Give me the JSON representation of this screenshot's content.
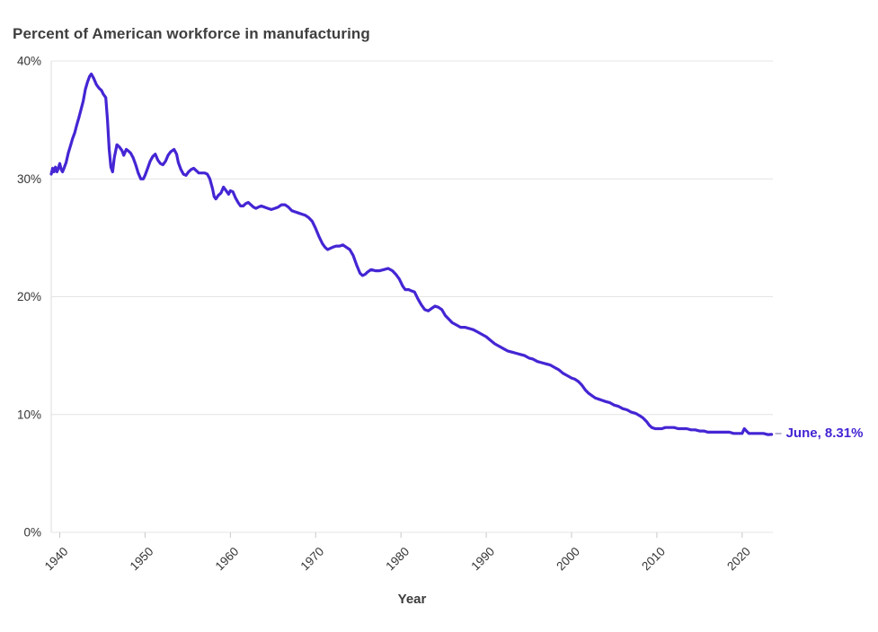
{
  "header": {
    "title": "Percent of American workforce in manufacturing"
  },
  "chart_data": {
    "type": "line",
    "title": "Percent of American workforce in manufacturing",
    "xlabel": "Year",
    "ylabel": "",
    "xlim": [
      1939.0,
      2023.6
    ],
    "ylim": [
      0,
      40
    ],
    "grid": "horizontal",
    "legend": "none",
    "x_ticks": [
      1940,
      1950,
      1960,
      1970,
      1980,
      1990,
      2000,
      2010,
      2020
    ],
    "y_ticks": [
      {
        "value": 0,
        "label": "0%"
      },
      {
        "value": 10,
        "label": "10%"
      },
      {
        "value": 20,
        "label": "20%"
      },
      {
        "value": 30,
        "label": "30%"
      },
      {
        "value": 40,
        "label": "40%"
      }
    ],
    "annotation": {
      "label": "June, 8.31%",
      "year": 2023.45,
      "value": 8.31
    },
    "series": [
      {
        "name": "Percent of American workforce in manufacturing",
        "color": "#4525d4",
        "points": [
          [
            1939.0,
            30.4
          ],
          [
            1939.17,
            30.9
          ],
          [
            1939.33,
            30.6
          ],
          [
            1939.5,
            31.0
          ],
          [
            1939.67,
            30.6
          ],
          [
            1939.83,
            30.9
          ],
          [
            1940.0,
            31.3
          ],
          [
            1940.17,
            30.8
          ],
          [
            1940.33,
            30.6
          ],
          [
            1940.5,
            30.9
          ],
          [
            1940.75,
            31.4
          ],
          [
            1941.0,
            32.2
          ],
          [
            1941.25,
            32.8
          ],
          [
            1941.5,
            33.4
          ],
          [
            1941.75,
            33.9
          ],
          [
            1942.0,
            34.6
          ],
          [
            1942.25,
            35.2
          ],
          [
            1942.5,
            35.9
          ],
          [
            1942.75,
            36.6
          ],
          [
            1943.0,
            37.6
          ],
          [
            1943.25,
            38.2
          ],
          [
            1943.5,
            38.7
          ],
          [
            1943.7,
            38.9
          ],
          [
            1944.0,
            38.5
          ],
          [
            1944.3,
            38.0
          ],
          [
            1944.6,
            37.7
          ],
          [
            1944.9,
            37.5
          ],
          [
            1945.1,
            37.2
          ],
          [
            1945.4,
            36.9
          ],
          [
            1945.6,
            35.0
          ],
          [
            1945.8,
            32.5
          ],
          [
            1946.0,
            31.0
          ],
          [
            1946.2,
            30.6
          ],
          [
            1946.4,
            31.8
          ],
          [
            1946.7,
            32.9
          ],
          [
            1947.0,
            32.7
          ],
          [
            1947.3,
            32.4
          ],
          [
            1947.5,
            32.0
          ],
          [
            1947.8,
            32.5
          ],
          [
            1948.0,
            32.4
          ],
          [
            1948.3,
            32.2
          ],
          [
            1948.6,
            31.8
          ],
          [
            1948.9,
            31.2
          ],
          [
            1949.2,
            30.5
          ],
          [
            1949.5,
            30.0
          ],
          [
            1949.8,
            30.0
          ],
          [
            1950.0,
            30.3
          ],
          [
            1950.3,
            30.9
          ],
          [
            1950.6,
            31.5
          ],
          [
            1950.9,
            31.9
          ],
          [
            1951.2,
            32.1
          ],
          [
            1951.5,
            31.6
          ],
          [
            1951.8,
            31.3
          ],
          [
            1952.1,
            31.2
          ],
          [
            1952.4,
            31.5
          ],
          [
            1952.7,
            32.0
          ],
          [
            1953.0,
            32.3
          ],
          [
            1953.4,
            32.5
          ],
          [
            1953.7,
            32.1
          ],
          [
            1953.9,
            31.4
          ],
          [
            1954.2,
            30.8
          ],
          [
            1954.5,
            30.4
          ],
          [
            1954.8,
            30.3
          ],
          [
            1955.1,
            30.6
          ],
          [
            1955.4,
            30.8
          ],
          [
            1955.7,
            30.9
          ],
          [
            1956.0,
            30.7
          ],
          [
            1956.3,
            30.5
          ],
          [
            1956.6,
            30.5
          ],
          [
            1957.0,
            30.5
          ],
          [
            1957.3,
            30.4
          ],
          [
            1957.6,
            30.0
          ],
          [
            1957.9,
            29.2
          ],
          [
            1958.1,
            28.5
          ],
          [
            1958.3,
            28.3
          ],
          [
            1958.6,
            28.6
          ],
          [
            1958.9,
            28.8
          ],
          [
            1959.2,
            29.3
          ],
          [
            1959.5,
            29.0
          ],
          [
            1959.8,
            28.7
          ],
          [
            1960.0,
            29.0
          ],
          [
            1960.3,
            28.9
          ],
          [
            1960.6,
            28.4
          ],
          [
            1960.9,
            28.0
          ],
          [
            1961.2,
            27.7
          ],
          [
            1961.5,
            27.7
          ],
          [
            1961.8,
            27.9
          ],
          [
            1962.1,
            28.0
          ],
          [
            1962.4,
            27.8
          ],
          [
            1962.7,
            27.6
          ],
          [
            1963.0,
            27.5
          ],
          [
            1963.3,
            27.6
          ],
          [
            1963.6,
            27.7
          ],
          [
            1964.0,
            27.6
          ],
          [
            1964.4,
            27.5
          ],
          [
            1964.8,
            27.4
          ],
          [
            1965.2,
            27.5
          ],
          [
            1965.6,
            27.6
          ],
          [
            1966.0,
            27.8
          ],
          [
            1966.4,
            27.8
          ],
          [
            1966.8,
            27.6
          ],
          [
            1967.2,
            27.3
          ],
          [
            1967.6,
            27.2
          ],
          [
            1968.0,
            27.1
          ],
          [
            1968.4,
            27.0
          ],
          [
            1968.8,
            26.9
          ],
          [
            1969.2,
            26.7
          ],
          [
            1969.6,
            26.4
          ],
          [
            1970.0,
            25.8
          ],
          [
            1970.4,
            25.1
          ],
          [
            1970.8,
            24.5
          ],
          [
            1971.1,
            24.2
          ],
          [
            1971.4,
            24.0
          ],
          [
            1971.7,
            24.1
          ],
          [
            1972.0,
            24.2
          ],
          [
            1972.4,
            24.3
          ],
          [
            1972.8,
            24.3
          ],
          [
            1973.2,
            24.4
          ],
          [
            1973.6,
            24.2
          ],
          [
            1974.0,
            24.0
          ],
          [
            1974.4,
            23.5
          ],
          [
            1974.8,
            22.7
          ],
          [
            1975.2,
            22.0
          ],
          [
            1975.5,
            21.8
          ],
          [
            1975.8,
            21.9
          ],
          [
            1976.1,
            22.1
          ],
          [
            1976.5,
            22.3
          ],
          [
            1977.0,
            22.2
          ],
          [
            1977.5,
            22.2
          ],
          [
            1978.0,
            22.3
          ],
          [
            1978.5,
            22.4
          ],
          [
            1979.0,
            22.2
          ],
          [
            1979.4,
            21.9
          ],
          [
            1979.8,
            21.5
          ],
          [
            1980.2,
            20.9
          ],
          [
            1980.5,
            20.6
          ],
          [
            1980.9,
            20.6
          ],
          [
            1981.2,
            20.5
          ],
          [
            1981.6,
            20.4
          ],
          [
            1982.0,
            19.8
          ],
          [
            1982.4,
            19.3
          ],
          [
            1982.8,
            18.9
          ],
          [
            1983.2,
            18.8
          ],
          [
            1983.6,
            19.0
          ],
          [
            1984.0,
            19.2
          ],
          [
            1984.4,
            19.1
          ],
          [
            1984.8,
            18.9
          ],
          [
            1985.2,
            18.4
          ],
          [
            1985.6,
            18.1
          ],
          [
            1986.0,
            17.8
          ],
          [
            1986.5,
            17.6
          ],
          [
            1987.0,
            17.4
          ],
          [
            1987.5,
            17.4
          ],
          [
            1988.0,
            17.3
          ],
          [
            1988.5,
            17.2
          ],
          [
            1989.0,
            17.0
          ],
          [
            1989.5,
            16.8
          ],
          [
            1990.0,
            16.6
          ],
          [
            1990.5,
            16.3
          ],
          [
            1991.0,
            16.0
          ],
          [
            1991.5,
            15.8
          ],
          [
            1992.0,
            15.6
          ],
          [
            1992.5,
            15.4
          ],
          [
            1993.0,
            15.3
          ],
          [
            1993.5,
            15.2
          ],
          [
            1994.0,
            15.1
          ],
          [
            1994.5,
            15.0
          ],
          [
            1995.0,
            14.8
          ],
          [
            1995.5,
            14.7
          ],
          [
            1996.0,
            14.5
          ],
          [
            1996.5,
            14.4
          ],
          [
            1997.0,
            14.3
          ],
          [
            1997.5,
            14.2
          ],
          [
            1998.0,
            14.0
          ],
          [
            1998.5,
            13.8
          ],
          [
            1999.0,
            13.5
          ],
          [
            1999.5,
            13.3
          ],
          [
            2000.0,
            13.1
          ],
          [
            2000.4,
            13.0
          ],
          [
            2000.8,
            12.8
          ],
          [
            2001.2,
            12.5
          ],
          [
            2001.6,
            12.1
          ],
          [
            2002.0,
            11.8
          ],
          [
            2002.4,
            11.6
          ],
          [
            2002.8,
            11.4
          ],
          [
            2003.2,
            11.3
          ],
          [
            2003.6,
            11.2
          ],
          [
            2004.0,
            11.1
          ],
          [
            2004.5,
            11.0
          ],
          [
            2005.0,
            10.8
          ],
          [
            2005.5,
            10.7
          ],
          [
            2006.0,
            10.5
          ],
          [
            2006.5,
            10.4
          ],
          [
            2007.0,
            10.2
          ],
          [
            2007.5,
            10.1
          ],
          [
            2008.0,
            9.9
          ],
          [
            2008.4,
            9.7
          ],
          [
            2008.8,
            9.4
          ],
          [
            2009.1,
            9.1
          ],
          [
            2009.4,
            8.9
          ],
          [
            2009.8,
            8.8
          ],
          [
            2010.2,
            8.8
          ],
          [
            2010.6,
            8.8
          ],
          [
            2011.0,
            8.9
          ],
          [
            2011.5,
            8.9
          ],
          [
            2012.0,
            8.9
          ],
          [
            2012.5,
            8.8
          ],
          [
            2013.0,
            8.8
          ],
          [
            2013.5,
            8.8
          ],
          [
            2014.0,
            8.7
          ],
          [
            2014.5,
            8.7
          ],
          [
            2015.0,
            8.6
          ],
          [
            2015.5,
            8.6
          ],
          [
            2016.0,
            8.5
          ],
          [
            2016.5,
            8.5
          ],
          [
            2017.0,
            8.5
          ],
          [
            2017.5,
            8.5
          ],
          [
            2018.0,
            8.5
          ],
          [
            2018.5,
            8.5
          ],
          [
            2019.0,
            8.4
          ],
          [
            2019.5,
            8.4
          ],
          [
            2020.0,
            8.4
          ],
          [
            2020.25,
            8.8
          ],
          [
            2020.5,
            8.6
          ],
          [
            2020.8,
            8.4
          ],
          [
            2021.2,
            8.4
          ],
          [
            2021.6,
            8.4
          ],
          [
            2022.0,
            8.4
          ],
          [
            2022.5,
            8.4
          ],
          [
            2023.0,
            8.3
          ],
          [
            2023.45,
            8.31
          ]
        ]
      }
    ],
    "colors": {
      "line": "#4525d4",
      "grid": "#e4e4e4",
      "axis": "#dcdcdc",
      "tick_text": "#333333",
      "title_text": "#3f3f3f"
    }
  }
}
